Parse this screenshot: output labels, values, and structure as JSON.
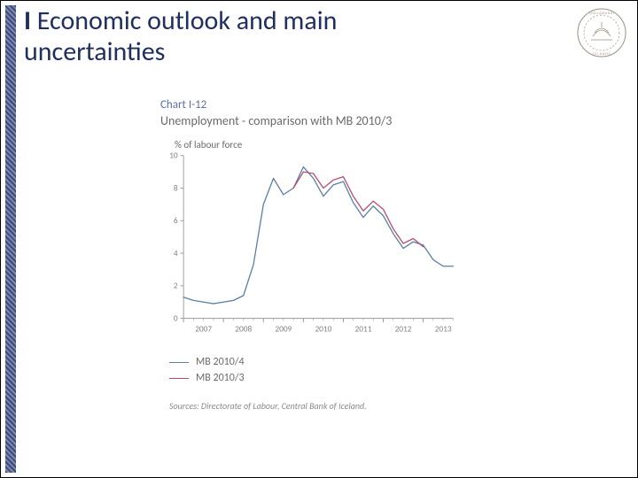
{
  "header": {
    "section_bar": "I",
    "title_rest": " Economic outlook and main uncertainties",
    "title_color": "#1f2f60",
    "title_fontsize": 30
  },
  "logo": {
    "name": "sedlabanki-islands-seal",
    "stroke": "#8a7e6a"
  },
  "chart": {
    "supertitle": "Chart I-12",
    "title": "Unemployment - comparison with MB 2010/3",
    "ylabel": "% of labour force",
    "type": "line",
    "background_color": "#ffffff",
    "axis_color": "#9a9a9a",
    "tick_color": "#9a9a9a",
    "tick_fontsize": 10,
    "tick_font_color": "#808080",
    "ylim": [
      0,
      10
    ],
    "ytick_step": 2,
    "yticks": [
      0,
      2,
      4,
      6,
      8,
      10
    ],
    "x_labels": [
      "2007",
      "2008",
      "2009",
      "2010",
      "2011",
      "2012",
      "2013"
    ],
    "x_start": 2007.0,
    "x_end": 2013.75,
    "x_step_quarters": 0.25,
    "series": [
      {
        "name": "MB 2010/4",
        "color": "#5b7fa6",
        "line_width": 1.4,
        "points": [
          [
            2007.0,
            1.3
          ],
          [
            2007.25,
            1.1
          ],
          [
            2007.5,
            1.0
          ],
          [
            2007.75,
            0.9
          ],
          [
            2008.0,
            1.0
          ],
          [
            2008.25,
            1.1
          ],
          [
            2008.5,
            1.4
          ],
          [
            2008.75,
            3.3
          ],
          [
            2009.0,
            7.0
          ],
          [
            2009.25,
            8.6
          ],
          [
            2009.5,
            7.6
          ],
          [
            2009.75,
            8.0
          ],
          [
            2010.0,
            9.3
          ],
          [
            2010.25,
            8.6
          ],
          [
            2010.5,
            7.5
          ],
          [
            2010.75,
            8.2
          ],
          [
            2011.0,
            8.4
          ],
          [
            2011.25,
            7.1
          ],
          [
            2011.5,
            6.2
          ],
          [
            2011.75,
            6.9
          ],
          [
            2012.0,
            6.3
          ],
          [
            2012.25,
            5.2
          ],
          [
            2012.5,
            4.3
          ],
          [
            2012.75,
            4.7
          ],
          [
            2013.0,
            4.5
          ],
          [
            2013.25,
            3.6
          ],
          [
            2013.5,
            3.2
          ],
          [
            2013.75,
            3.2
          ]
        ]
      },
      {
        "name": "MB 2010/3",
        "color": "#b94e74",
        "line_width": 1.4,
        "points": [
          [
            2009.75,
            8.0
          ],
          [
            2010.0,
            9.0
          ],
          [
            2010.25,
            8.9
          ],
          [
            2010.5,
            8.0
          ],
          [
            2010.75,
            8.5
          ],
          [
            2011.0,
            8.7
          ],
          [
            2011.25,
            7.5
          ],
          [
            2011.5,
            6.6
          ],
          [
            2011.75,
            7.2
          ],
          [
            2012.0,
            6.7
          ],
          [
            2012.25,
            5.5
          ],
          [
            2012.5,
            4.6
          ],
          [
            2012.75,
            4.9
          ],
          [
            2013.0,
            4.4
          ]
        ]
      }
    ],
    "legend": [
      {
        "label": "MB 2010/4",
        "color": "#5b7fa6"
      },
      {
        "label": "MB 2010/3",
        "color": "#b94e74"
      }
    ],
    "sources_label": "Sources:",
    "sources_text": " Directorate of Labour, Central Bank of Iceland."
  }
}
